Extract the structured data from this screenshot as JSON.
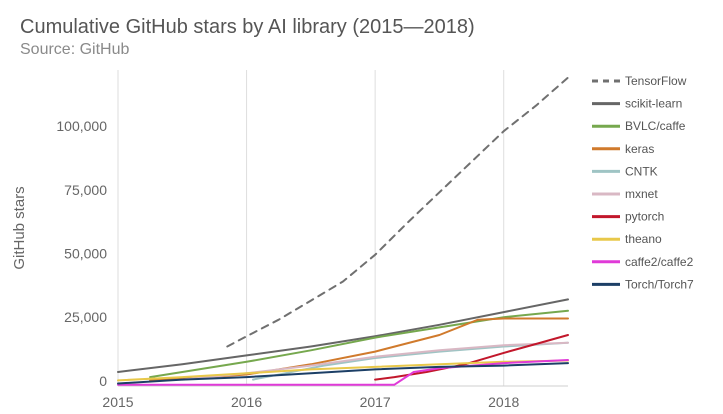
{
  "chart_data": {
    "type": "line",
    "title": "Cumulative GitHub stars by AI library (2015—2018)",
    "subtitle": "Source: GitHub",
    "xlabel": "",
    "ylabel": "GitHub stars",
    "xlim": [
      2015.0,
      2018.5
    ],
    "ylim": [
      -2000,
      122000
    ],
    "x_ticks": [
      {
        "value": 2015,
        "label": "2015"
      },
      {
        "value": 2016,
        "label": "2016"
      },
      {
        "value": 2017,
        "label": "2017"
      },
      {
        "value": 2018,
        "label": "2018"
      }
    ],
    "y_ticks": [
      {
        "value": 0,
        "label": "0"
      },
      {
        "value": 25000,
        "label": "25,000"
      },
      {
        "value": 50000,
        "label": "50,000"
      },
      {
        "value": 75000,
        "label": "75,000"
      },
      {
        "value": 100000,
        "label": "100,000"
      }
    ],
    "grid": {
      "vertical": true,
      "horizontal": false
    },
    "legend_position": "right",
    "series": [
      {
        "name": "TensorFlow",
        "color": "#707070",
        "dashed": true,
        "points": [
          [
            2015.85,
            13500
          ],
          [
            2016.0,
            17500
          ],
          [
            2016.25,
            24000
          ],
          [
            2016.5,
            31500
          ],
          [
            2016.75,
            39000
          ],
          [
            2017.0,
            49500
          ],
          [
            2017.25,
            62000
          ],
          [
            2017.5,
            74000
          ],
          [
            2017.75,
            86000
          ],
          [
            2018.0,
            98000
          ],
          [
            2018.25,
            108000
          ],
          [
            2018.5,
            119000
          ]
        ]
      },
      {
        "name": "scikit-learn",
        "color": "#666666",
        "dashed": false,
        "points": [
          [
            2015.0,
            3500
          ],
          [
            2015.5,
            6500
          ],
          [
            2016.0,
            10000
          ],
          [
            2016.5,
            13500
          ],
          [
            2017.0,
            17500
          ],
          [
            2017.5,
            22000
          ],
          [
            2018.0,
            27000
          ],
          [
            2018.5,
            32000
          ]
        ]
      },
      {
        "name": "BVLC/caffe",
        "color": "#76a84e",
        "dashed": false,
        "points": [
          [
            2015.25,
            1500
          ],
          [
            2015.5,
            3500
          ],
          [
            2016.0,
            7500
          ],
          [
            2016.5,
            12000
          ],
          [
            2017.0,
            17000
          ],
          [
            2017.5,
            21000
          ],
          [
            2018.0,
            25000
          ],
          [
            2018.5,
            27500
          ]
        ]
      },
      {
        "name": "keras",
        "color": "#d07a2c",
        "dashed": false,
        "points": [
          [
            2015.25,
            200
          ],
          [
            2015.5,
            800
          ],
          [
            2016.0,
            2500
          ],
          [
            2016.5,
            6500
          ],
          [
            2017.0,
            11500
          ],
          [
            2017.5,
            18000
          ],
          [
            2017.8,
            24000
          ],
          [
            2018.0,
            24500
          ],
          [
            2018.5,
            24500
          ]
        ]
      },
      {
        "name": "CNTK",
        "color": "#9fc4c4",
        "dashed": false,
        "points": [
          [
            2016.05,
            500
          ],
          [
            2016.3,
            3000
          ],
          [
            2016.6,
            6000
          ],
          [
            2017.0,
            9000
          ],
          [
            2017.5,
            11500
          ],
          [
            2018.0,
            13500
          ],
          [
            2018.5,
            15000
          ]
        ]
      },
      {
        "name": "mxnet",
        "color": "#d9b8c4",
        "dashed": false,
        "points": [
          [
            2015.5,
            500
          ],
          [
            2016.0,
            3000
          ],
          [
            2016.5,
            6000
          ],
          [
            2017.0,
            9500
          ],
          [
            2017.5,
            12000
          ],
          [
            2018.0,
            14000
          ],
          [
            2018.5,
            15000
          ]
        ]
      },
      {
        "name": "pytorch",
        "color": "#c2172b",
        "dashed": false,
        "points": [
          [
            2017.0,
            500
          ],
          [
            2017.15,
            1500
          ],
          [
            2017.4,
            3500
          ],
          [
            2017.7,
            6500
          ],
          [
            2018.0,
            11000
          ],
          [
            2018.25,
            14500
          ],
          [
            2018.5,
            18000
          ]
        ]
      },
      {
        "name": "theano",
        "color": "#e8c84a",
        "dashed": false,
        "points": [
          [
            2015.0,
            200
          ],
          [
            2015.5,
            1500
          ],
          [
            2016.0,
            3000
          ],
          [
            2016.5,
            4500
          ],
          [
            2017.0,
            5500
          ],
          [
            2017.5,
            6500
          ],
          [
            2018.0,
            7500
          ],
          [
            2018.5,
            8000
          ]
        ]
      },
      {
        "name": "caffe2/caffe2",
        "color": "#e03ad8",
        "dashed": false,
        "points": [
          [
            2015.0,
            -1500
          ],
          [
            2016.0,
            -1500
          ],
          [
            2017.0,
            -1500
          ],
          [
            2017.15,
            -1500
          ],
          [
            2017.3,
            3500
          ],
          [
            2017.5,
            5000
          ],
          [
            2018.0,
            7000
          ],
          [
            2018.5,
            8200
          ]
        ]
      },
      {
        "name": "Torch/Torch7",
        "color": "#1c3f66",
        "dashed": false,
        "points": [
          [
            2015.0,
            -1000
          ],
          [
            2015.5,
            500
          ],
          [
            2016.0,
            1500
          ],
          [
            2016.5,
            3000
          ],
          [
            2017.0,
            4500
          ],
          [
            2017.5,
            5500
          ],
          [
            2018.0,
            6000
          ],
          [
            2018.5,
            7000
          ]
        ]
      }
    ]
  }
}
